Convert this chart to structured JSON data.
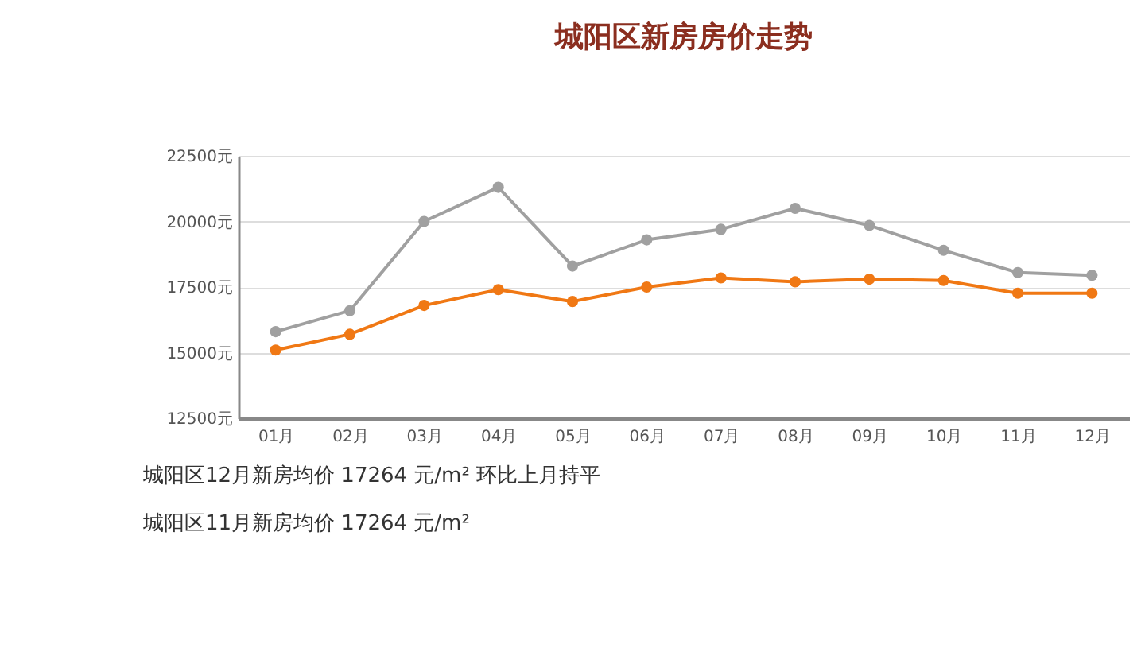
{
  "chart_data": {
    "type": "line",
    "title": "城阳区新房房价走势",
    "categories": [
      "01月",
      "02月",
      "03月",
      "04月",
      "05月",
      "06月",
      "07月",
      "08月",
      "09月",
      "10月",
      "11月",
      "12月"
    ],
    "series": [
      {
        "color": "#a0a0a0",
        "values": [
          15800,
          16600,
          20000,
          21300,
          18300,
          19300,
          19700,
          20500,
          19850,
          18900,
          18050,
          17950
        ]
      },
      {
        "color": "#f07814",
        "values": [
          15100,
          15700,
          16800,
          17400,
          16950,
          17500,
          17850,
          17700,
          17800,
          17750,
          17264,
          17264
        ]
      }
    ],
    "ylim": [
      12500,
      22500
    ],
    "yticks": [
      {
        "value": 12500,
        "label": "12500元"
      },
      {
        "value": 15000,
        "label": "15000元"
      },
      {
        "value": 17500,
        "label": "17500元"
      },
      {
        "value": 20000,
        "label": "20000元"
      },
      {
        "value": 22500,
        "label": "22500元"
      }
    ],
    "grid": "y",
    "marker": "circle",
    "line_style": "solid",
    "legend": false,
    "annotations": [
      "城阳区12月新房均价 17264 元/m² 环比上月持平",
      "城阳区11月新房均价 17264 元/m²"
    ]
  }
}
